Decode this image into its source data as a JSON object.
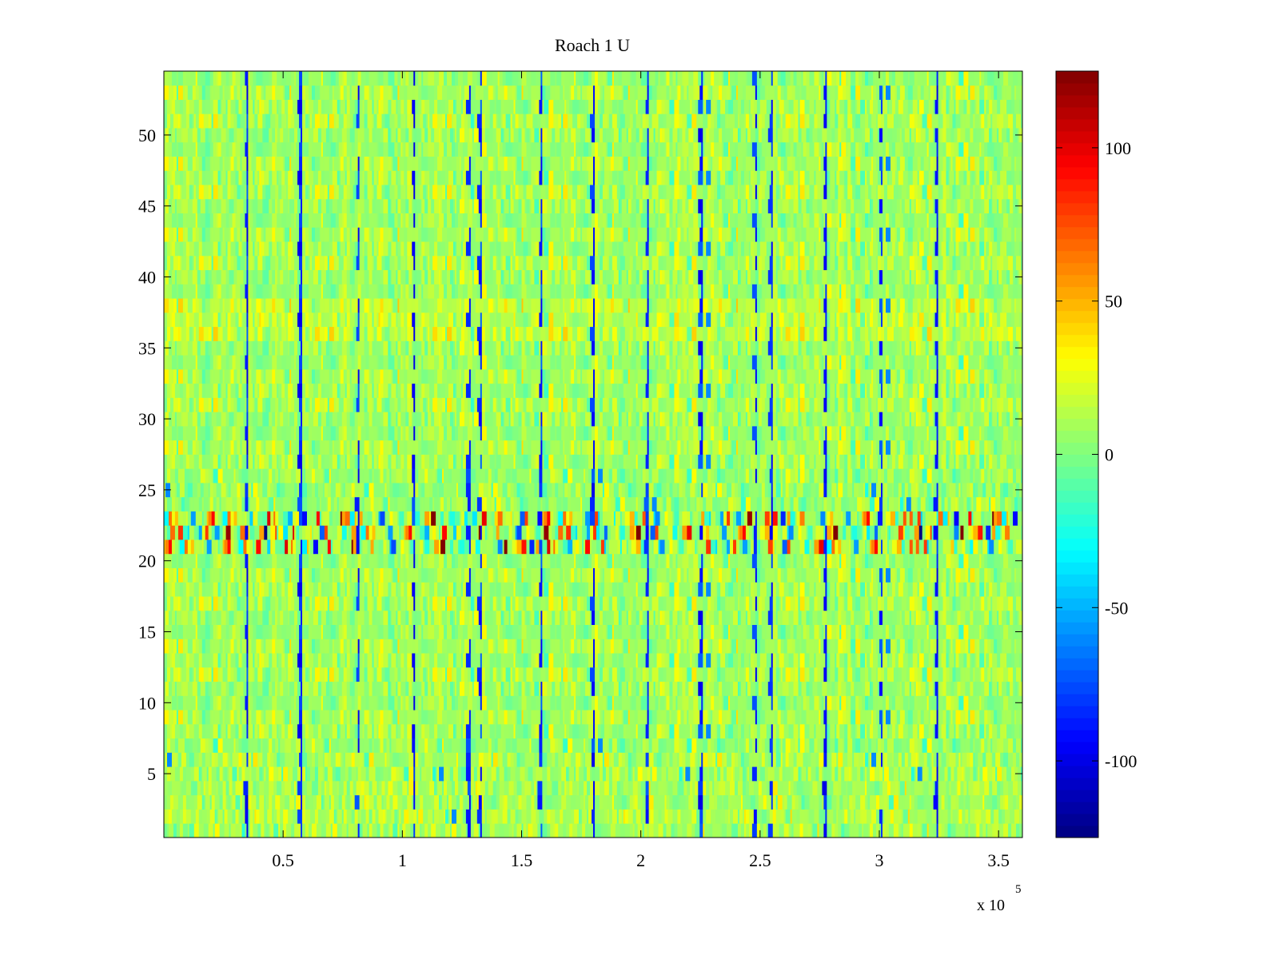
{
  "chart_data": {
    "type": "heatmap",
    "title": "Roach 1 U",
    "xlabel": "",
    "ylabel": "",
    "x_multiplier_label": "x 10",
    "x_multiplier_exponent": "5",
    "xlim": [
      0.0,
      3.6
    ],
    "ylim": [
      0.5,
      54.5
    ],
    "x_ticks": [
      0.5,
      1,
      1.5,
      2,
      2.5,
      3,
      3.5
    ],
    "x_tick_labels": [
      "0.5",
      "1",
      "1.5",
      "2",
      "2.5",
      "3",
      "3.5"
    ],
    "y_ticks": [
      5,
      10,
      15,
      20,
      25,
      30,
      35,
      40,
      45,
      50
    ],
    "y_tick_labels": [
      "5",
      "10",
      "15",
      "20",
      "25",
      "30",
      "35",
      "40",
      "45",
      "50"
    ],
    "rows": 54,
    "columns": 540,
    "colormap": "jet",
    "colorbar": {
      "clim": [
        -125,
        125
      ],
      "ticks": [
        -100,
        -50,
        0,
        50,
        100
      ],
      "tick_labels": [
        "-100",
        "-50",
        "0",
        "50",
        "100"
      ],
      "placement": "right"
    },
    "high_variance_rows": [
      21,
      23
    ],
    "strong_negative_columns_x": [
      0.35,
      0.58,
      0.82,
      1.05,
      1.28,
      1.33,
      1.58,
      1.8,
      2.03,
      2.26,
      2.48,
      2.55,
      2.78,
      3.01,
      3.24
    ],
    "grid": false
  }
}
